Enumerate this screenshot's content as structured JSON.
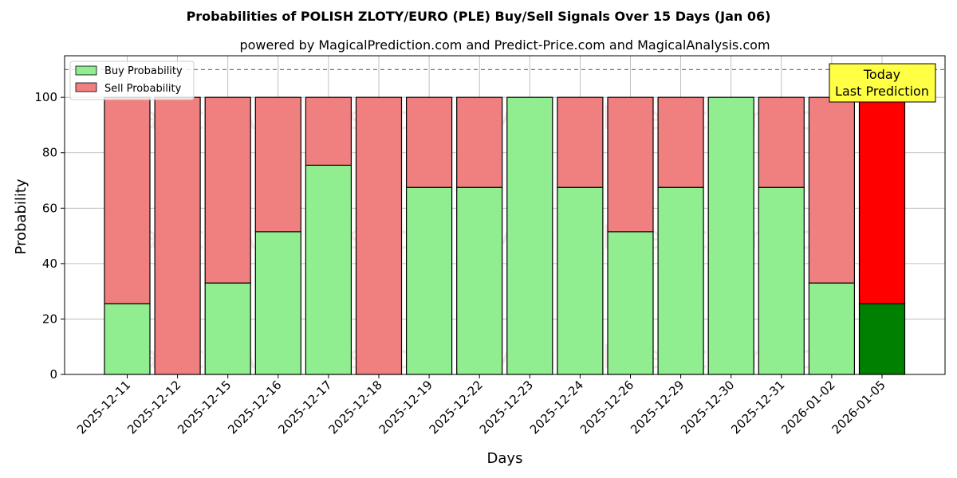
{
  "chart_data": {
    "type": "bar",
    "stacked": true,
    "title": "Probabilities of POLISH ZLOTY/EURO (PLE) Buy/Sell Signals Over 15 Days (Jan 06)",
    "subtitle": "powered by MagicalPrediction.com and Predict-Price.com and MagicalAnalysis.com",
    "xlabel": "Days",
    "ylabel": "Probability",
    "ylim": [
      0,
      115
    ],
    "yticks": [
      0,
      20,
      40,
      60,
      80,
      100
    ],
    "grid": true,
    "legend_position": "top-left",
    "reference_line": 110,
    "categories": [
      "2025-12-11",
      "2025-12-12",
      "2025-12-15",
      "2025-12-16",
      "2025-12-17",
      "2025-12-18",
      "2025-12-19",
      "2025-12-22",
      "2025-12-23",
      "2025-12-24",
      "2025-12-26",
      "2025-12-29",
      "2025-12-30",
      "2025-12-31",
      "2026-01-02",
      "2026-01-05"
    ],
    "series": [
      {
        "name": "Buy Probability",
        "color": "#90ee90",
        "highlight_color": "#008000",
        "values": [
          25.5,
          0,
          33,
          51.5,
          75.5,
          0,
          67.5,
          67.5,
          100,
          67.5,
          51.5,
          67.5,
          100,
          67.5,
          33,
          25.5
        ]
      },
      {
        "name": "Sell Probability",
        "color": "#f08080",
        "highlight_color": "#ff0000",
        "values": [
          74.5,
          100,
          67,
          48.5,
          24.5,
          100,
          32.5,
          32.5,
          0,
          32.5,
          48.5,
          32.5,
          0,
          32.5,
          67,
          74.5
        ]
      }
    ],
    "highlight_index": 15,
    "annotation": {
      "line1": "Today",
      "line2": "Last Prediction",
      "bg_color": "#ffff44"
    },
    "watermarks": [
      "MagicalAnalysis.com",
      "MagicalPrediction.com"
    ]
  }
}
